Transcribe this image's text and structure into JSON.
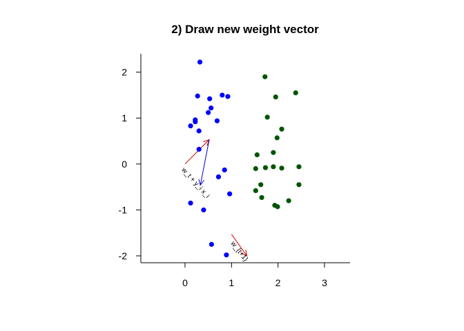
{
  "chart_data": {
    "type": "scatter",
    "title": "2) Draw new weight vector",
    "xlabel": "",
    "ylabel": "",
    "xlim": [
      -0.95,
      3.55
    ],
    "ylim": [
      -2.15,
      2.4
    ],
    "x_ticks": [
      0,
      1,
      2,
      3
    ],
    "y_ticks": [
      -2,
      -1,
      0,
      1,
      2
    ],
    "grid": false,
    "series": [
      {
        "color": "#0000ff",
        "points": [
          [
            0.32,
            2.22
          ],
          [
            0.27,
            1.48
          ],
          [
            0.8,
            1.5
          ],
          [
            0.92,
            1.47
          ],
          [
            0.53,
            1.42
          ],
          [
            0.56,
            1.22
          ],
          [
            0.5,
            1.12
          ],
          [
            0.22,
            0.96
          ],
          [
            0.22,
            0.92
          ],
          [
            0.69,
            0.94
          ],
          [
            0.12,
            0.83
          ],
          [
            0.3,
            0.72
          ],
          [
            0.3,
            0.32
          ],
          [
            0.85,
            -0.13
          ],
          [
            0.72,
            -0.28
          ],
          [
            0.96,
            -0.65
          ],
          [
            0.12,
            -0.85
          ],
          [
            0.4,
            -1.0
          ],
          [
            0.57,
            -1.75
          ],
          [
            0.89,
            -1.98
          ]
        ]
      },
      {
        "color": "#005500",
        "points": [
          [
            1.72,
            1.9
          ],
          [
            2.38,
            1.55
          ],
          [
            1.95,
            1.46
          ],
          [
            1.77,
            1.02
          ],
          [
            2.08,
            0.76
          ],
          [
            1.98,
            0.57
          ],
          [
            1.9,
            0.25
          ],
          [
            1.55,
            0.2
          ],
          [
            1.52,
            -0.1
          ],
          [
            1.73,
            -0.08
          ],
          [
            1.9,
            -0.06
          ],
          [
            2.08,
            -0.09
          ],
          [
            2.45,
            -0.06
          ],
          [
            1.63,
            -0.45
          ],
          [
            1.52,
            -0.58
          ],
          [
            2.45,
            -0.45
          ],
          [
            1.65,
            -0.73
          ],
          [
            2.23,
            -0.8
          ],
          [
            1.93,
            -0.9
          ],
          [
            1.99,
            -0.93
          ]
        ]
      }
    ],
    "vectors": [
      {
        "from": [
          0,
          0
        ],
        "to": [
          0.52,
          0.53
        ],
        "color": "#cc0000",
        "label": ""
      },
      {
        "from": [
          0.52,
          0.53
        ],
        "to": [
          0.33,
          -0.46
        ],
        "color": "#0000cc",
        "label": "w_t + y_i x_i"
      },
      {
        "from": [
          1.0,
          -1.53
        ],
        "to": [
          1.33,
          -2.0
        ],
        "color": "#cc0000",
        "label": "w_{t+1}"
      }
    ]
  }
}
